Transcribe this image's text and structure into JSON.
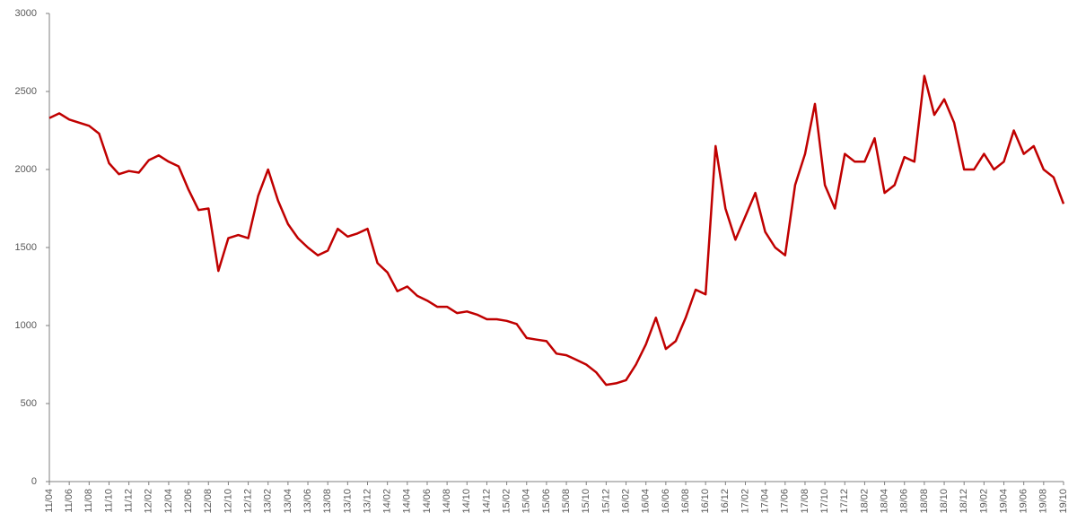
{
  "chart_data": {
    "type": "line",
    "categories": [
      "11/04",
      null,
      "11/06",
      null,
      "11/08",
      null,
      "11/10",
      null,
      "11/12",
      null,
      "12/02",
      null,
      "12/04",
      null,
      "12/06",
      null,
      "12/08",
      null,
      "12/10",
      null,
      "12/12",
      null,
      "13/02",
      null,
      "13/04",
      null,
      "13/06",
      null,
      "13/08",
      null,
      "13/10",
      null,
      "13/12",
      null,
      "14/02",
      null,
      "14/04",
      null,
      "14/06",
      null,
      "14/08",
      null,
      "14/10",
      null,
      "14/12",
      null,
      "15/02",
      null,
      "15/04",
      null,
      "15/06",
      null,
      "15/08",
      null,
      "15/10",
      null,
      "15/12",
      null,
      "16/02",
      null,
      "16/04",
      null,
      "16/06",
      null,
      "16/08",
      null,
      "16/10",
      null,
      "16/12",
      null,
      "17/02",
      null,
      "17/04",
      null,
      "17/06",
      null,
      "17/08",
      null,
      "17/10",
      null,
      "17/12",
      null,
      "18/02",
      null,
      "18/04",
      null,
      "18/06",
      null,
      "18/08",
      null,
      "18/10",
      null,
      "18/12",
      null,
      "19/02",
      null,
      "19/04",
      null,
      "19/06",
      null,
      "19/08",
      null,
      "19/10"
    ],
    "values": [
      2330,
      2360,
      2320,
      2300,
      2280,
      2230,
      2040,
      1970,
      1990,
      1980,
      2060,
      2090,
      2050,
      2020,
      1870,
      1740,
      1750,
      1350,
      1560,
      1580,
      1560,
      1830,
      2000,
      1800,
      1650,
      1560,
      1500,
      1450,
      1480,
      1620,
      1570,
      1590,
      1620,
      1400,
      1340,
      1220,
      1250,
      1190,
      1160,
      1120,
      1120,
      1080,
      1090,
      1070,
      1040,
      1040,
      1030,
      1010,
      920,
      910,
      900,
      820,
      810,
      780,
      750,
      700,
      620,
      630,
      650,
      750,
      880,
      1050,
      850,
      900,
      1050,
      1230,
      1200,
      2150,
      1750,
      1550,
      1700,
      1850,
      1600,
      1500,
      1450,
      1900,
      2100,
      2420,
      1900,
      1750,
      2100,
      2050,
      2050,
      2200,
      1850,
      1900,
      2080,
      2050,
      2600,
      2350,
      2450,
      2300,
      2000,
      2000,
      2100,
      2000,
      2050,
      2250,
      2100,
      2150,
      2000,
      1950,
      1780
    ],
    "color": "#c00000",
    "ylim": [
      0,
      3000
    ],
    "yticks": [
      0,
      500,
      1000,
      1500,
      2000,
      2500,
      3000
    ],
    "grid": false
  }
}
